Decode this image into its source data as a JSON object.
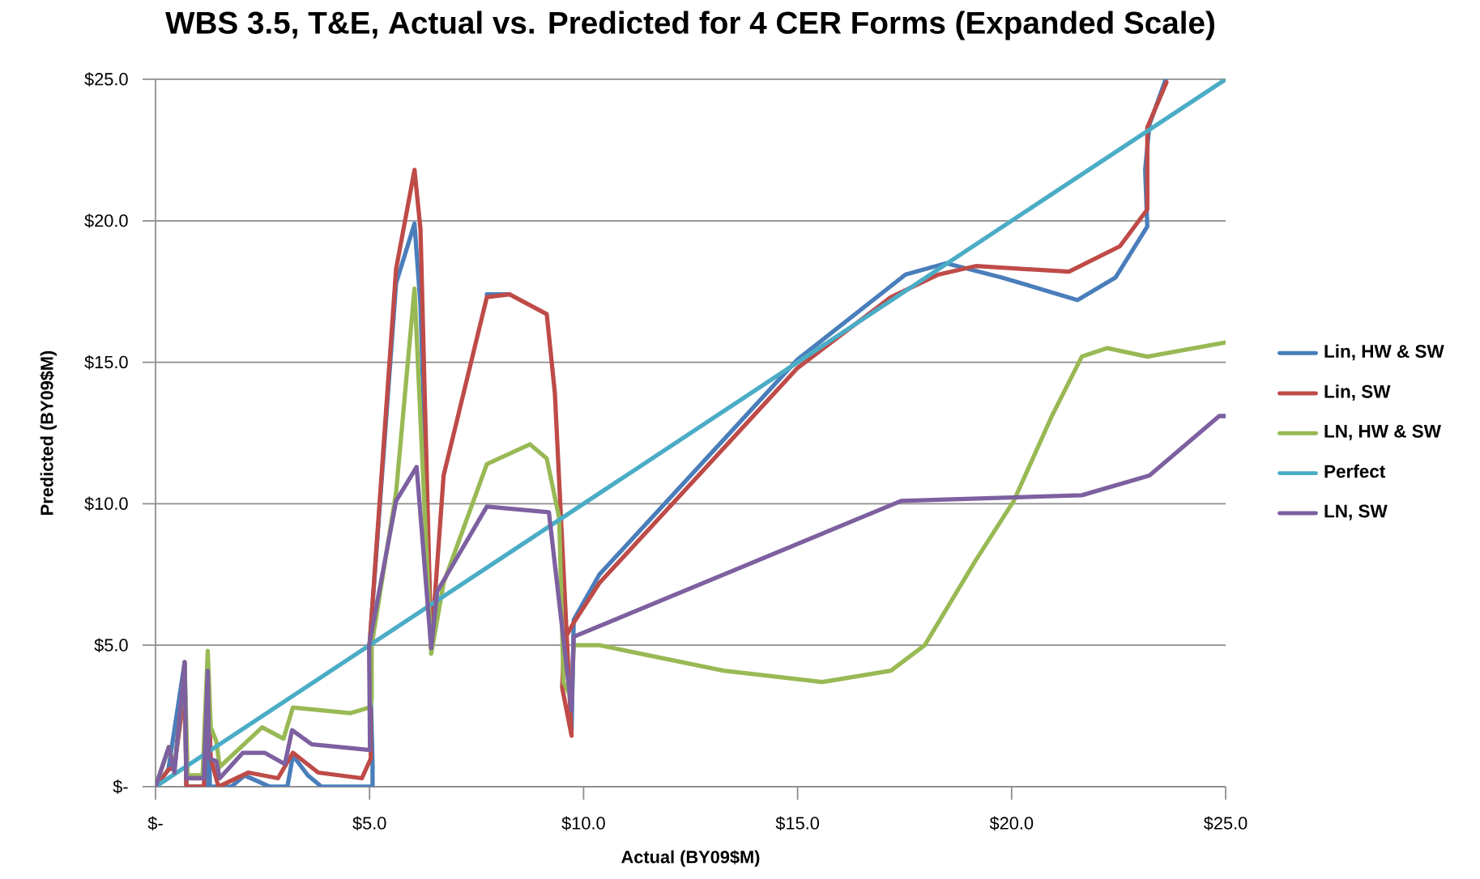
{
  "chart_data": {
    "type": "line",
    "title": "WBS 3.5, T&E, Actual vs. Predicted for 4 CER Forms (Expanded Scale)",
    "xlabel": "Actual (BY09$M)",
    "ylabel": "Predicted (BY09$M)",
    "xlim": [
      0,
      25
    ],
    "ylim": [
      0,
      25
    ],
    "xticks": [
      {
        "value": 0,
        "label": "$-"
      },
      {
        "value": 5,
        "label": "$5.0"
      },
      {
        "value": 10,
        "label": "$10.0"
      },
      {
        "value": 15,
        "label": "$15.0"
      },
      {
        "value": 20,
        "label": "$20.0"
      },
      {
        "value": 25,
        "label": "$25.0"
      }
    ],
    "yticks": [
      {
        "value": 0,
        "label": "$-"
      },
      {
        "value": 5,
        "label": "$5.0"
      },
      {
        "value": 10,
        "label": "$10.0"
      },
      {
        "value": 15,
        "label": "$15.0"
      },
      {
        "value": 20,
        "label": "$20.0"
      },
      {
        "value": 25,
        "label": "$25.0"
      }
    ],
    "grid": "y",
    "legend": "right",
    "marker": "none",
    "line_style": "solid",
    "series": [
      {
        "name": "Lin, HW & SW",
        "color": "#4a7ebb",
        "x": [
          0,
          0.3,
          0.68,
          0.72,
          1.17,
          1.22,
          1.27,
          1.77,
          2.08,
          2.67,
          3.08,
          3.21,
          3.56,
          3.88,
          5.07,
          5.07,
          5.0,
          5.62,
          6.05,
          6.19,
          6.44,
          6.73,
          7.74,
          8.27,
          9.14,
          9.33,
          9.72,
          9.77,
          10.37,
          15.0,
          17.52,
          18.47,
          19.76,
          21.54,
          22.43,
          23.17,
          23.12,
          23.22,
          23.6
        ],
        "values": [
          0,
          0.6,
          4.4,
          0,
          0,
          4.1,
          0,
          0,
          0.4,
          0,
          0,
          1.1,
          0.4,
          0,
          0,
          0.8,
          5.0,
          17.8,
          19.9,
          17.0,
          5.0,
          null,
          17.4,
          17.4,
          null,
          null,
          2.0,
          5.9,
          7.5,
          15.1,
          18.1,
          18.5,
          18.0,
          17.2,
          18.0,
          19.8,
          21.8,
          23.4,
          25
        ]
      },
      {
        "name": "Lin, SW",
        "color": "#be4b48",
        "x": [
          0,
          0.3,
          0.44,
          0.6,
          0.68,
          0.72,
          1.13,
          1.22,
          1.29,
          1.47,
          2.17,
          2.86,
          3.21,
          3.8,
          4.82,
          5.03,
          5.0,
          5.62,
          6.05,
          6.19,
          6.44,
          6.73,
          7.74,
          8.27,
          9.14,
          9.33,
          9.72,
          9.5,
          9.55,
          9.77,
          10.37,
          15.0,
          17.18,
          18.29,
          19.16,
          21.34,
          22.53,
          23.17,
          23.17,
          23.62
        ],
        "values": [
          0,
          0.6,
          0.7,
          2.5,
          4.4,
          0,
          0,
          4.1,
          1.0,
          0,
          0.5,
          0.3,
          1.2,
          0.5,
          0.3,
          1.0,
          5.0,
          18.3,
          21.8,
          19.7,
          4.9,
          11.0,
          17.3,
          17.4,
          16.7,
          13.9,
          1.8,
          3.5,
          5.2,
          5.8,
          7.2,
          14.8,
          17.3,
          18.1,
          18.4,
          18.2,
          19.1,
          20.4,
          23.3,
          24.9
        ]
      },
      {
        "name": "LN, HW & SW",
        "color": "#98b954",
        "x": [
          0,
          0.31,
          0.44,
          0.6,
          0.68,
          0.75,
          1.1,
          1.22,
          1.29,
          1.42,
          1.5,
          2.49,
          2.99,
          3.21,
          4.56,
          5.0,
          5.05,
          5.05,
          5.62,
          6.05,
          6.44,
          6.73,
          7.74,
          8.75,
          9.14,
          9.43,
          9.53,
          9.72,
          9.77,
          10.37,
          13.27,
          15.58,
          17.18,
          17.97,
          19.16,
          20.05,
          20.94,
          21.64,
          22.24,
          23.17,
          25.0
        ],
        "values": [
          0,
          1.4,
          0.6,
          3.0,
          4.4,
          0.4,
          0.4,
          4.8,
          2.1,
          1.6,
          0.7,
          2.1,
          1.7,
          2.8,
          2.6,
          2.8,
          3.1,
          5.0,
          10.4,
          17.6,
          4.7,
          7.2,
          11.4,
          12.1,
          11.6,
          9.5,
          3.7,
          3.1,
          5.0,
          5.0,
          4.1,
          3.7,
          4.1,
          5.0,
          8.0,
          10.1,
          13.1,
          15.2,
          15.5,
          15.2,
          15.7
        ]
      },
      {
        "name": "Perfect",
        "color": "#4bacc6",
        "x": [
          0,
          25
        ],
        "values": [
          0,
          25
        ]
      },
      {
        "name": "LN, SW",
        "color": "#7d60a0",
        "x": [
          0,
          0.31,
          0.44,
          0.68,
          0.72,
          1.13,
          1.22,
          1.25,
          1.42,
          1.5,
          2.04,
          2.55,
          3.02,
          3.19,
          3.65,
          5.01,
          4.99,
          5.62,
          6.1,
          6.44,
          6.58,
          7.74,
          9.19,
          9.72,
          9.77,
          17.42,
          21.64,
          23.22,
          24.85,
          25
        ],
        "values": [
          0,
          1.4,
          0.5,
          4.4,
          0.3,
          0.3,
          4.1,
          1.0,
          0.9,
          0.3,
          1.2,
          1.2,
          0.8,
          2.0,
          1.5,
          1.3,
          5.0,
          10.1,
          11.3,
          4.9,
          6.9,
          9.9,
          9.7,
          2.7,
          5.3,
          10.1,
          10.3,
          11.0,
          13.1,
          13.1
        ]
      }
    ]
  }
}
